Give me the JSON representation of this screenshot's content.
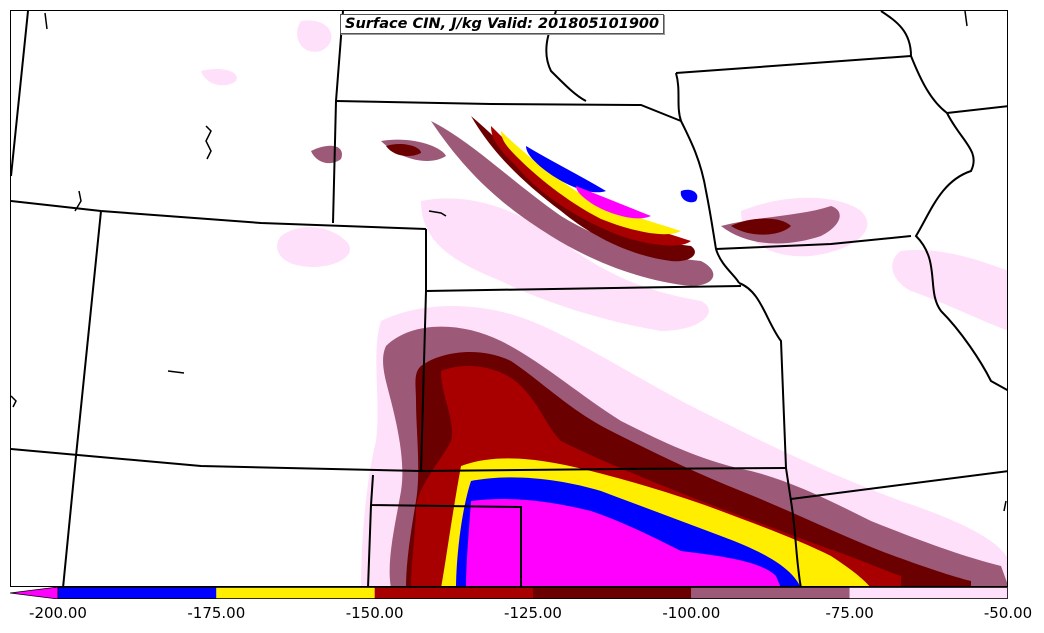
{
  "title": "Surface CIN, J/kg Valid: 201805101900",
  "colorbar": {
    "ticks": [
      "-200.00",
      "-175.00",
      "-150.00",
      "-125.00",
      "-100.00",
      "-75.00",
      "-50.00"
    ],
    "bins": [
      {
        "from": -200,
        "to": -175,
        "color": "#0000ff"
      },
      {
        "from": -175,
        "to": -150,
        "color": "#ffee00"
      },
      {
        "from": -150,
        "to": -125,
        "color": "#a80000"
      },
      {
        "from": -125,
        "to": -100,
        "color": "#6b0000"
      },
      {
        "from": -100,
        "to": -75,
        "color": "#9c5a78"
      },
      {
        "from": -75,
        "to": -50,
        "color": "#ffe0fa"
      }
    ],
    "under_color": "#ff00ff"
  }
}
